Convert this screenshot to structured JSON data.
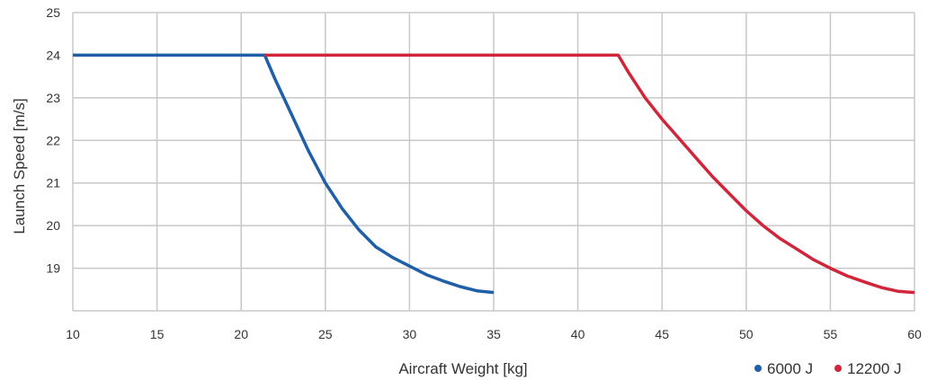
{
  "chart_data": {
    "type": "line",
    "xlabel": "Aircraft Weight [kg]",
    "ylabel": "Launch Speed [m/s]",
    "xlim": [
      10,
      60
    ],
    "ylim": [
      18,
      25
    ],
    "x_ticks": [
      10,
      15,
      20,
      25,
      30,
      35,
      40,
      45,
      50,
      55,
      60
    ],
    "y_ticks": [
      19,
      20,
      21,
      22,
      23,
      24,
      25
    ],
    "grid": true,
    "legend_position": "bottom-right",
    "series": [
      {
        "name": "6000 J",
        "color": "#1f5fa8",
        "points": [
          [
            10,
            24
          ],
          [
            21.4,
            24
          ],
          [
            22,
            23.45
          ],
          [
            23,
            22.6
          ],
          [
            24,
            21.75
          ],
          [
            25,
            21.0
          ],
          [
            26,
            20.4
          ],
          [
            27,
            19.9
          ],
          [
            28,
            19.5
          ],
          [
            29,
            19.25
          ],
          [
            30,
            19.05
          ],
          [
            31,
            18.85
          ],
          [
            32,
            18.7
          ],
          [
            33,
            18.57
          ],
          [
            34,
            18.47
          ],
          [
            35,
            18.43
          ]
        ]
      },
      {
        "name": "12200 J",
        "color": "#d0253a",
        "points": [
          [
            21.4,
            24
          ],
          [
            42.4,
            24
          ],
          [
            43,
            23.6
          ],
          [
            44,
            23.0
          ],
          [
            45,
            22.5
          ],
          [
            46,
            22.05
          ],
          [
            47,
            21.6
          ],
          [
            48,
            21.15
          ],
          [
            49,
            20.75
          ],
          [
            50,
            20.35
          ],
          [
            51,
            20.0
          ],
          [
            52,
            19.7
          ],
          [
            53,
            19.45
          ],
          [
            54,
            19.2
          ],
          [
            55,
            19.0
          ],
          [
            56,
            18.82
          ],
          [
            57,
            18.68
          ],
          [
            58,
            18.55
          ],
          [
            59,
            18.46
          ],
          [
            60,
            18.43
          ]
        ]
      }
    ]
  }
}
